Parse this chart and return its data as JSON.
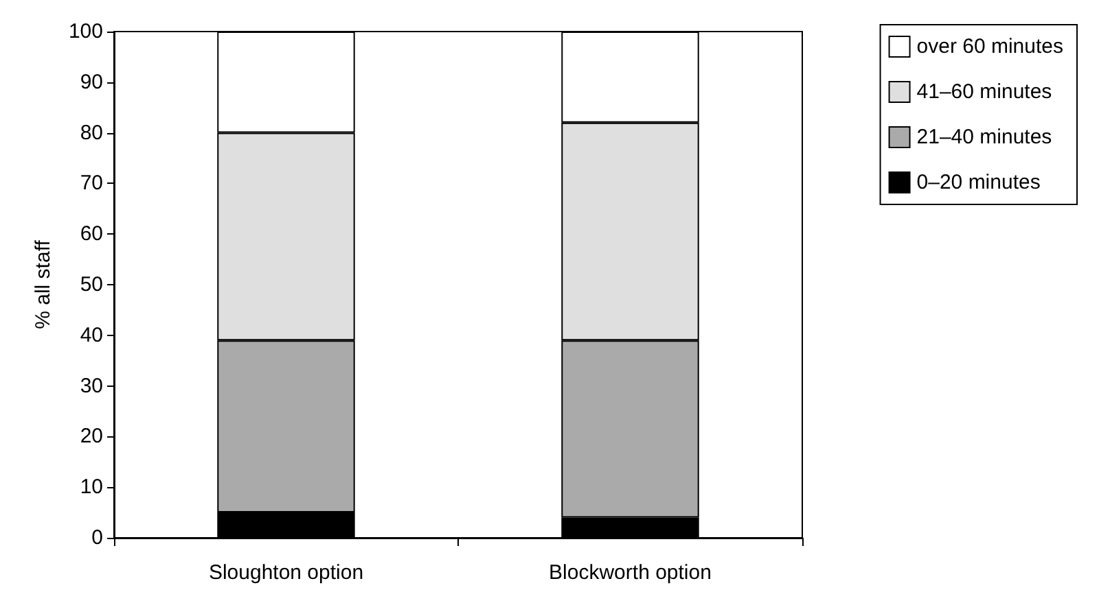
{
  "chart_data": {
    "type": "bar",
    "ylabel": "% all staff",
    "categories": [
      "Sloughton option",
      "Blockworth option"
    ],
    "stacked": true,
    "ylim": [
      0,
      100
    ],
    "yticks": [
      0,
      10,
      20,
      30,
      40,
      50,
      60,
      70,
      80,
      90,
      100
    ],
    "grid": false,
    "legend": "right",
    "series": [
      {
        "name": "0–20 minutes",
        "color": "#000000",
        "values": [
          5,
          4
        ]
      },
      {
        "name": "21–40 minutes",
        "color": "#aaaaaa",
        "values": [
          34,
          35
        ]
      },
      {
        "name": "41–60 minutes",
        "color": "#dfdfdf",
        "values": [
          41,
          43
        ]
      },
      {
        "name": "over 60 minutes",
        "color": "#ffffff",
        "values": [
          20,
          18
        ]
      }
    ]
  }
}
